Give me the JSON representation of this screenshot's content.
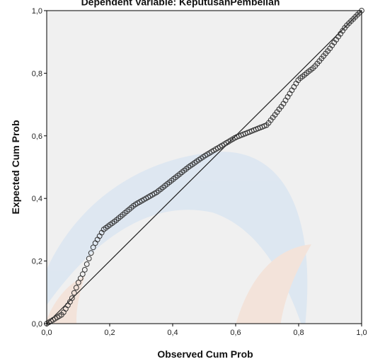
{
  "colors": {
    "plot_background": "#f0f0f0",
    "plot_border": "#000000",
    "marker_stroke": "#333333",
    "reference_line": "#222222",
    "watermark_blue": "#cfe0f2",
    "watermark_orange": "#f7d9c9"
  },
  "chart_data": {
    "type": "scatter",
    "title": "Dependent Variable: KeputusanPembelian",
    "xlabel": "Observed Cum Prob",
    "ylabel": "Expected Cum Prob",
    "xlim": [
      0,
      1
    ],
    "ylim": [
      0,
      1
    ],
    "x_ticks": [
      0.0,
      0.2,
      0.4,
      0.6,
      0.8,
      1.0
    ],
    "y_ticks": [
      0.0,
      0.2,
      0.4,
      0.6,
      0.8,
      1.0
    ],
    "x_tick_labels": [
      "0,0",
      "0,2",
      "0,4",
      "0,6",
      "0,8",
      "1,0"
    ],
    "y_tick_labels": [
      "0,0",
      "0,2",
      "0,4",
      "0,6",
      "0,8",
      "1,0"
    ],
    "reference_line": {
      "from": [
        0,
        0
      ],
      "to": [
        1,
        1
      ]
    },
    "grid": false,
    "curve": [
      [
        0.0,
        0.0
      ],
      [
        0.05,
        0.03
      ],
      [
        0.08,
        0.08
      ],
      [
        0.1,
        0.13
      ],
      [
        0.12,
        0.17
      ],
      [
        0.15,
        0.25
      ],
      [
        0.18,
        0.3
      ],
      [
        0.22,
        0.33
      ],
      [
        0.28,
        0.38
      ],
      [
        0.35,
        0.42
      ],
      [
        0.4,
        0.46
      ],
      [
        0.45,
        0.5
      ],
      [
        0.5,
        0.535
      ],
      [
        0.55,
        0.565
      ],
      [
        0.6,
        0.595
      ],
      [
        0.65,
        0.615
      ],
      [
        0.7,
        0.635
      ],
      [
        0.75,
        0.7
      ],
      [
        0.8,
        0.78
      ],
      [
        0.85,
        0.82
      ],
      [
        0.9,
        0.88
      ],
      [
        0.95,
        0.95
      ],
      [
        1.0,
        1.0
      ]
    ],
    "n_points": 150
  }
}
